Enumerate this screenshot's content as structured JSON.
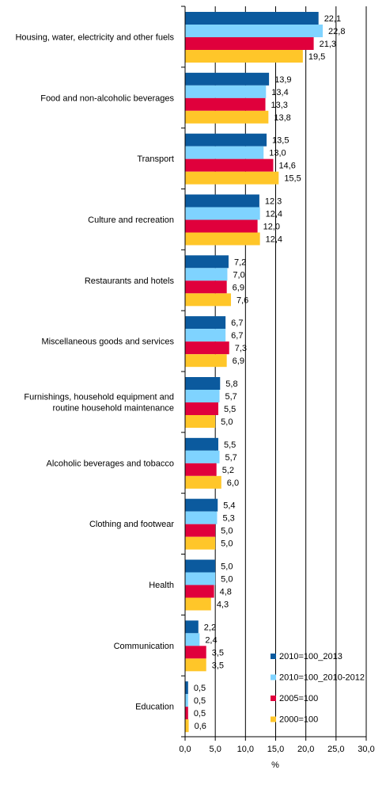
{
  "chart_data": {
    "type": "bar",
    "orientation": "horizontal",
    "categories": [
      [
        "Housing, water, electricity and other fuels"
      ],
      [
        "Food and non-alcoholic beverages"
      ],
      [
        "Transport"
      ],
      [
        "Culture and recreation"
      ],
      [
        "Restaurants and hotels"
      ],
      [
        "Miscellaneous goods and services"
      ],
      [
        "Furnishings, household equipment and",
        "routine household maintenance"
      ],
      [
        "Alcoholic beverages and tobacco"
      ],
      [
        "Clothing and footwear"
      ],
      [
        "Health"
      ],
      [
        "Communication"
      ],
      [
        "Education"
      ]
    ],
    "series": [
      {
        "name": "2010=100_2013",
        "color": "#0b5a9e",
        "values": [
          22.1,
          13.9,
          13.5,
          12.3,
          7.2,
          6.7,
          5.8,
          5.5,
          5.4,
          5.0,
          2.2,
          0.5
        ],
        "labels": [
          "22,1",
          "13,9",
          "13,5",
          "12,3",
          "7,2",
          "6,7",
          "5,8",
          "5,5",
          "5,4",
          "5,0",
          "2,2",
          "0,5"
        ]
      },
      {
        "name": "2010=100_2010-2012",
        "color": "#7fd3ff",
        "values": [
          22.8,
          13.4,
          13.0,
          12.4,
          7.0,
          6.7,
          5.7,
          5.7,
          5.3,
          5.0,
          2.4,
          0.5
        ],
        "labels": [
          "22,8",
          "13,4",
          "13,0",
          "12,4",
          "7,0",
          "6,7",
          "5,7",
          "5,7",
          "5,3",
          "5,0",
          "2,4",
          "0,5"
        ]
      },
      {
        "name": "2005=100",
        "color": "#e0003c",
        "values": [
          21.3,
          13.3,
          14.6,
          12.0,
          6.9,
          7.3,
          5.5,
          5.2,
          5.0,
          4.8,
          3.5,
          0.5
        ],
        "labels": [
          "21,3",
          "13,3",
          "14,6",
          "12,0",
          "6,9",
          "7,3",
          "5,5",
          "5,2",
          "5,0",
          "4,8",
          "3,5",
          "0,5"
        ]
      },
      {
        "name": "2000=100",
        "color": "#ffc629",
        "values": [
          19.5,
          13.8,
          15.5,
          12.4,
          7.6,
          6.9,
          5.0,
          6.0,
          5.0,
          4.3,
          3.5,
          0.6
        ],
        "labels": [
          "19,5",
          "13,8",
          "15,5",
          "12,4",
          "7,6",
          "6,9",
          "5,0",
          "6,0",
          "5,0",
          "4,3",
          "3,5",
          "0,6"
        ]
      }
    ],
    "xlim": [
      0,
      30
    ],
    "xticks": [
      0,
      5,
      10,
      15,
      20,
      25,
      30
    ],
    "xtick_labels": [
      "0,0",
      "5,0",
      "10,0",
      "15,0",
      "20,0",
      "25,0",
      "30,0"
    ],
    "xlabel": "%",
    "grid": true,
    "legend_position": "bottom-right"
  }
}
